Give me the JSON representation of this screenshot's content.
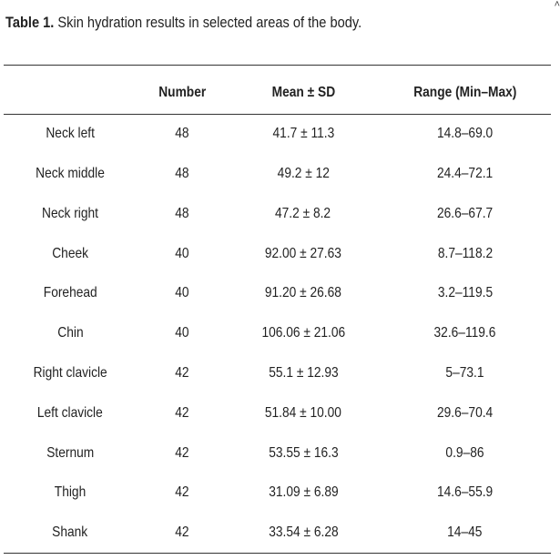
{
  "caption": {
    "label": "Table 1.",
    "text": "Skin hydration results in selected areas of the body."
  },
  "table": {
    "headers": [
      "",
      "Number",
      "Mean ± SD",
      "Range (Min–Max)"
    ],
    "rows": [
      [
        "Neck left",
        "48",
        "41.7 ± 11.3",
        "14.8–69.0"
      ],
      [
        "Neck middle",
        "48",
        "49.2 ± 12",
        "24.4–72.1"
      ],
      [
        "Neck right",
        "48",
        "47.2 ± 8.2",
        "26.6–67.7"
      ],
      [
        "Cheek",
        "40",
        "92.00 ± 27.63",
        "8.7–118.2"
      ],
      [
        "Forehead",
        "40",
        "91.20 ± 26.68",
        "3.2–119.5"
      ],
      [
        "Chin",
        "40",
        "106.06 ± 21.06",
        "32.6–119.6"
      ],
      [
        "Right clavicle",
        "42",
        "55.1 ± 12.93",
        "5–73.1"
      ],
      [
        "Left clavicle",
        "42",
        "51.84 ± 10.00",
        "29.6–70.4"
      ],
      [
        "Sternum",
        "42",
        "53.55 ± 16.3",
        "0.9–86"
      ],
      [
        "Thigh",
        "42",
        "31.09 ± 6.89",
        "14.6–55.9"
      ],
      [
        "Shank",
        "42",
        "33.54 ± 6.28",
        "14–45"
      ]
    ]
  }
}
